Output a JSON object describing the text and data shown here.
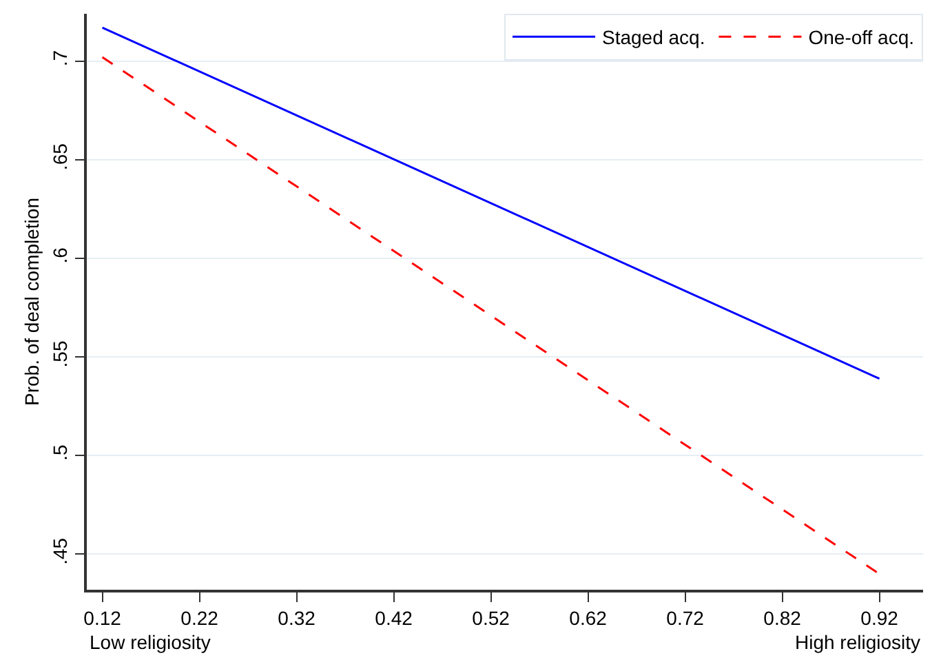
{
  "chart_data": {
    "type": "line",
    "ylabel": "Prob. of deal completion",
    "x": [
      0.12,
      0.92
    ],
    "series": [
      {
        "name": "Staged acq.",
        "color": "#0000ff",
        "values": [
          0.717,
          0.539
        ],
        "line_style": "solid"
      },
      {
        "name": "One-off acq.",
        "color": "#ff0000",
        "values": [
          0.702,
          0.44
        ],
        "line_style": "dashed"
      }
    ],
    "xlim": [
      0.104,
      0.965
    ],
    "xticks": [
      0.12,
      0.22,
      0.32,
      0.42,
      0.52,
      0.62,
      0.72,
      0.82,
      0.92
    ],
    "ylim": [
      0.432,
      0.724
    ],
    "yticks": [
      {
        "value": 0.45,
        "label": ".45"
      },
      {
        "value": 0.5,
        "label": ".5"
      },
      {
        "value": 0.55,
        "label": ".55"
      },
      {
        "value": 0.6,
        "label": ".6"
      },
      {
        "value": 0.65,
        "label": ".65"
      },
      {
        "value": 0.7,
        "label": ".7"
      }
    ],
    "annotations": [
      "Low religiosity",
      "High religiosity"
    ],
    "grid": "y",
    "legend": "top right",
    "marker": "none"
  }
}
